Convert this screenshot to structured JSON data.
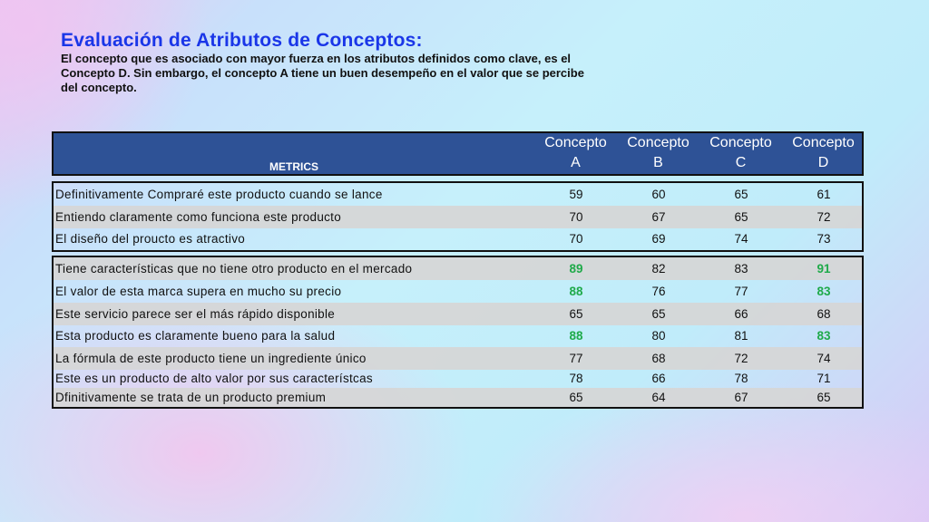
{
  "title": "Evaluación de Atributos de Conceptos:",
  "subtitle": "El concepto que es asociado con mayor fuerza en los atributos definidos como clave, es el Concepto D.  Sin embargo, el concepto A tiene un buen desempeño en el valor que se percibe del concepto.",
  "table": {
    "metrics_header": "METRICS",
    "columns": [
      {
        "line1": "Concepto",
        "line2": "A"
      },
      {
        "line1": "Concepto",
        "line2": "B"
      },
      {
        "line1": "Concepto",
        "line2": "C"
      },
      {
        "line1": "Concepto",
        "line2": "D"
      }
    ],
    "highlight_color": "#1faa4a",
    "groups": [
      {
        "rows": [
          {
            "label": "Definitivamente Compraré este producto cuando se lance",
            "values": [
              59,
              60,
              65,
              61
            ],
            "highlight": [
              false,
              false,
              false,
              false
            ]
          },
          {
            "label": "Entiendo claramente como funciona este producto",
            "values": [
              70,
              67,
              65,
              72
            ],
            "highlight": [
              false,
              false,
              false,
              false
            ]
          },
          {
            "label": "El diseño del proucto es atractivo",
            "values": [
              70,
              69,
              74,
              73
            ],
            "highlight": [
              false,
              false,
              false,
              false
            ]
          }
        ]
      },
      {
        "rows": [
          {
            "label": "Tiene características que no tiene otro producto en el mercado",
            "values": [
              89,
              82,
              83,
              91
            ],
            "highlight": [
              true,
              false,
              false,
              true
            ]
          },
          {
            "label": "El valor de esta marca supera en mucho su precio",
            "values": [
              88,
              76,
              77,
              83
            ],
            "highlight": [
              true,
              false,
              false,
              true
            ]
          },
          {
            "label": "Este servicio parece ser el más rápido disponible",
            "values": [
              65,
              65,
              66,
              68
            ],
            "highlight": [
              false,
              false,
              false,
              false
            ]
          },
          {
            "label": "Esta producto es claramente bueno para la salud",
            "values": [
              88,
              80,
              81,
              83
            ],
            "highlight": [
              true,
              false,
              false,
              true
            ]
          },
          {
            "label": "La fórmula de este producto tiene un ingrediente único",
            "values": [
              77,
              68,
              72,
              74
            ],
            "highlight": [
              false,
              false,
              false,
              false
            ]
          },
          {
            "label": "Este es un producto de alto valor por sus característcas",
            "values": [
              78,
              66,
              78,
              71
            ],
            "highlight": [
              false,
              false,
              false,
              false
            ]
          },
          {
            "label": "Dfinitivamente se trata de un producto premium",
            "values": [
              65,
              64,
              67,
              65
            ],
            "highlight": [
              false,
              false,
              false,
              false
            ]
          }
        ]
      }
    ]
  }
}
